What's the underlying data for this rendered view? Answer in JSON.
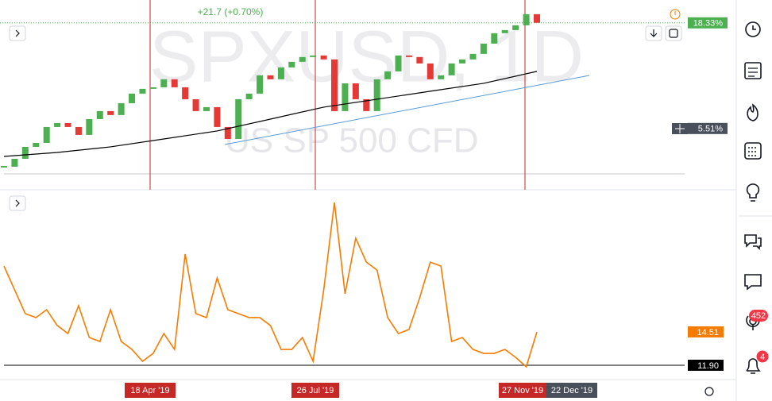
{
  "header": {
    "change": "+21.7 (+0.70%)"
  },
  "price_pane": {
    "type": "candlestick",
    "symbol": "SPXUSD, 1D",
    "description": "US SP 500 CFD",
    "ylim": [
      0,
      21.1
    ],
    "closes": [
      0.87,
      1.83,
      3.28,
      3.76,
      5.69,
      6.17,
      5.69,
      4.73,
      6.65,
      7.62,
      7.14,
      8.58,
      9.74,
      10.32,
      10.51,
      11.48,
      10.51,
      9.06,
      7.62,
      8.1,
      5.69,
      4.24,
      9.06,
      9.74,
      11.96,
      11.48,
      12.92,
      13.6,
      14.18,
      14.37,
      13.89,
      7.62,
      10.99,
      9.06,
      7.62,
      11.48,
      12.44,
      14.37,
      14.18,
      13.4,
      11.48,
      11.96,
      13.4,
      13.89,
      14.56,
      15.81,
      17.07,
      17.45,
      18.03,
      19.38,
      18.33
    ],
    "moving_average": [
      2.12,
      2.6,
      3.28,
      4.24,
      5.21,
      6.65,
      8.1,
      9.06,
      10.03,
      10.99,
      12.44
    ],
    "up_color": "#4caf50",
    "down_color": "#e53935",
    "ma_color": "#000000",
    "labels": [
      {
        "value": 18.33,
        "label": "18.33%",
        "color": "#4caf50"
      },
      {
        "value": 5.51,
        "label": "5.51%",
        "color": "#4a4f5c"
      }
    ]
  },
  "indicator_pane": {
    "type": "line",
    "ylim": [
      10.78,
      25.26
    ],
    "values": [
      19.66,
      17.8,
      15.94,
      15.63,
      16.25,
      15.01,
      14.38,
      16.56,
      14.07,
      13.76,
      16.25,
      13.76,
      13.14,
      12.21,
      12.83,
      14.38,
      13.14,
      20.6,
      15.94,
      15.63,
      18.73,
      16.25,
      15.94,
      15.63,
      15.63,
      15.01,
      13.14,
      13.14,
      14.07,
      12.21,
      17.8,
      24.63,
      17.49,
      21.84,
      19.97,
      19.35,
      15.63,
      14.38,
      14.7,
      17.18,
      19.97,
      19.66,
      13.76,
      14.07,
      13.14,
      12.83,
      12.83,
      13.14,
      12.52,
      11.78,
      14.51
    ],
    "color": "#f57c00",
    "labels": [
      {
        "value": 14.51,
        "label": "14.51",
        "color": "#f57c00"
      },
      {
        "value": 11.9,
        "label": "11.90",
        "color": "#000000"
      }
    ]
  },
  "time_axis": {
    "labels": [
      "18 Apr '19",
      "26 Jul '19",
      "27 Nov '19",
      "22 Dec '19"
    ]
  },
  "sidebar": {
    "badges": [
      "452",
      "4"
    ]
  }
}
